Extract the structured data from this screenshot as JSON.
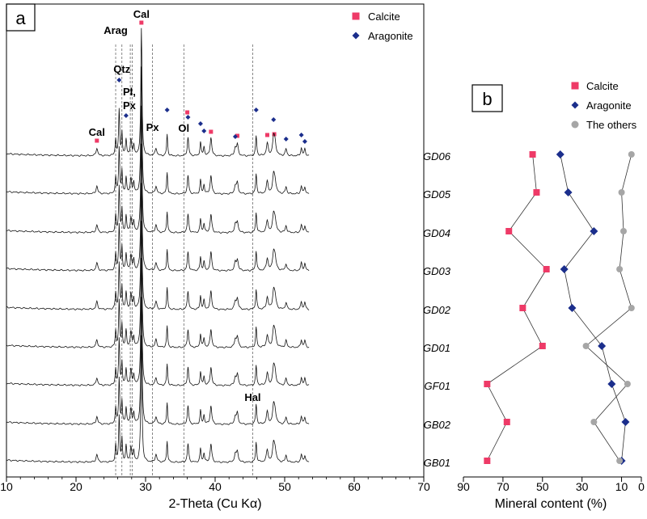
{
  "panel_a": {
    "letter": "a",
    "xlabel": "2-Theta (Cu Kα)",
    "legend": [
      {
        "label": "Calcite",
        "marker": "square",
        "color": "#ee3a67"
      },
      {
        "label": "Aragonite",
        "marker": "diamond",
        "color": "#1b2e8c"
      }
    ],
    "annotations": [
      "Cal",
      "Arag",
      "Cal",
      "Qtz",
      "Pl,",
      "Px",
      "Px",
      "Ol",
      "Hal"
    ]
  },
  "panel_b": {
    "letter": "b",
    "xlabel": "Mineral content (%)",
    "legend": [
      {
        "label": "Calcite",
        "marker": "square",
        "color": "#ee3a67"
      },
      {
        "label": "Aragonite",
        "marker": "diamond",
        "color": "#1b2e8c"
      },
      {
        "label": "The others",
        "marker": "circle",
        "color": "#a6a6a6"
      }
    ]
  },
  "chart_data": [
    {
      "type": "line",
      "panel": "a",
      "xlabel": "2-Theta (Cu Kα)",
      "xlim": [
        10,
        70
      ],
      "xticks": [
        10,
        20,
        30,
        40,
        50,
        60,
        70
      ],
      "samples": [
        "GD06",
        "GD05",
        "GD04",
        "GD03",
        "GD02",
        "GD01",
        "GF01",
        "GB02",
        "GB01"
      ],
      "reference_lines_2theta": [
        25.7,
        26.6,
        27.8,
        28.1,
        31.0,
        35.5,
        45.4
      ],
      "peak_labels": [
        {
          "label": "Cal",
          "two_theta": 23.0
        },
        {
          "label": "Arag",
          "two_theta": 25.7
        },
        {
          "label": "Qtz",
          "two_theta": 26.6
        },
        {
          "label": "Pl, Px",
          "two_theta": 27.9
        },
        {
          "label": "Cal",
          "two_theta": 29.4
        },
        {
          "label": "Px",
          "two_theta": 31.0
        },
        {
          "label": "Ol",
          "two_theta": 35.5
        },
        {
          "label": "Hal",
          "two_theta": 45.4
        }
      ],
      "calcite_peaks_2theta": [
        23.0,
        29.4,
        36.0,
        39.4,
        43.2,
        47.5,
        48.5
      ],
      "aragonite_peaks_2theta": [
        26.2,
        27.2,
        33.1,
        36.1,
        37.9,
        38.4,
        42.9,
        45.9,
        48.4,
        50.2,
        52.4,
        52.9
      ]
    },
    {
      "type": "line",
      "panel": "b",
      "xlabel": "Mineral content (%)",
      "xlim": [
        90,
        0
      ],
      "xticks": [
        90,
        70,
        50,
        30,
        10,
        0
      ],
      "categories": [
        "GD06",
        "GD05",
        "GD04",
        "GD03",
        "GD02",
        "GD01",
        "GF01",
        "GB02",
        "GB01"
      ],
      "series": [
        {
          "name": "Calcite",
          "marker": "square",
          "color": "#ee3a67",
          "values": [
            55,
            53,
            67,
            48,
            60,
            50,
            78,
            68,
            78
          ]
        },
        {
          "name": "Aragonite",
          "marker": "diamond",
          "color": "#1b2e8c",
          "values": [
            41,
            37,
            24,
            39,
            35,
            20,
            15,
            8,
            10
          ]
        },
        {
          "name": "The others",
          "marker": "circle",
          "color": "#a6a6a6",
          "values": [
            5,
            10,
            9,
            11,
            5,
            28,
            7,
            24,
            11
          ]
        }
      ]
    }
  ]
}
